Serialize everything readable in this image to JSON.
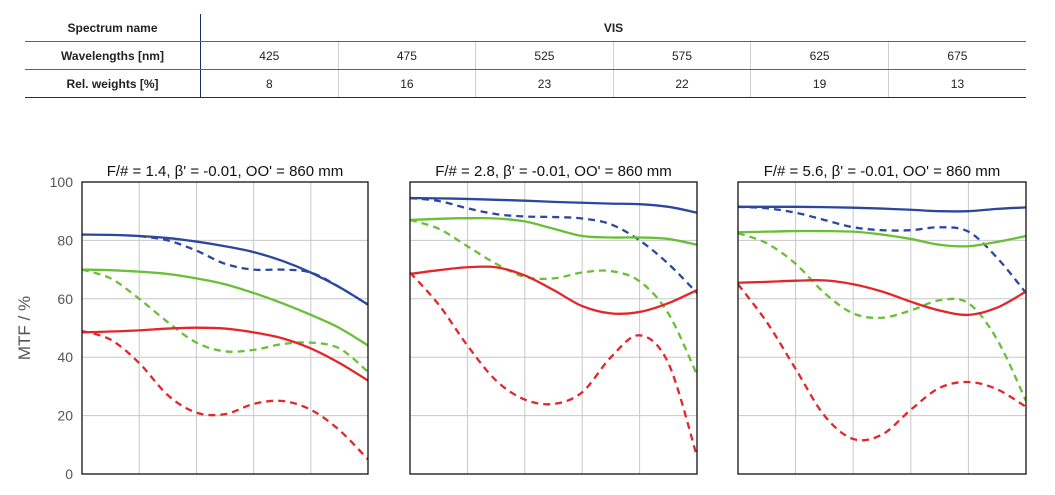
{
  "spectrum_table": {
    "name_label": "Spectrum name",
    "name_value": "VIS",
    "wavelength_label": "Wavelengths [nm]",
    "wavelengths": [
      "425",
      "475",
      "525",
      "575",
      "625",
      "675"
    ],
    "weights_label": "Rel. weights [%]",
    "weights": [
      "8",
      "16",
      "23",
      "22",
      "19",
      "13"
    ]
  },
  "colors": {
    "blue": "#2b47a0",
    "green": "#69bf36",
    "red": "#e3262b",
    "grid": "#c8c8c8",
    "frame": "#111111"
  },
  "chart_data": [
    {
      "type": "line",
      "title": "F/# = 1.4, β' = -0.01, OO' = 860 mm",
      "ylabel": "MTF / %",
      "ylim": [
        0,
        100
      ],
      "yticks": [
        "0",
        "20",
        "40",
        "60",
        "80",
        "100"
      ],
      "xlim": [
        0,
        1
      ],
      "grid": true,
      "series": [
        {
          "color": "blue",
          "style": "solid",
          "x": [
            0,
            0.1,
            0.2,
            0.3,
            0.4,
            0.5,
            0.6,
            0.7,
            0.8,
            0.9,
            1.0
          ],
          "y": [
            82,
            81.9,
            81.5,
            80.8,
            79.6,
            78,
            76,
            73,
            69,
            64,
            58
          ]
        },
        {
          "color": "blue",
          "style": "dashed",
          "x": [
            0.2,
            0.3,
            0.4,
            0.5,
            0.6,
            0.7,
            0.8,
            0.9,
            1.0
          ],
          "y": [
            81.5,
            80,
            76.5,
            72,
            70,
            70,
            69,
            64,
            58
          ]
        },
        {
          "color": "green",
          "style": "solid",
          "x": [
            0,
            0.1,
            0.2,
            0.3,
            0.4,
            0.5,
            0.6,
            0.7,
            0.8,
            0.9,
            1.0
          ],
          "y": [
            70,
            69.8,
            69.3,
            68.5,
            67,
            65,
            62,
            58.5,
            54.5,
            50,
            44
          ]
        },
        {
          "color": "green",
          "style": "dashed",
          "x": [
            0,
            0.1,
            0.2,
            0.3,
            0.4,
            0.5,
            0.6,
            0.7,
            0.8,
            0.9,
            1.0
          ],
          "y": [
            70,
            67,
            60,
            52,
            45,
            42,
            42.5,
            44.5,
            45,
            43,
            35
          ]
        },
        {
          "color": "red",
          "style": "solid",
          "x": [
            0,
            0.1,
            0.2,
            0.3,
            0.4,
            0.5,
            0.6,
            0.7,
            0.8,
            0.9,
            1.0
          ],
          "y": [
            48.5,
            48.8,
            49.2,
            49.8,
            50.1,
            49.8,
            48.5,
            46.5,
            43,
            38,
            32
          ]
        },
        {
          "color": "red",
          "style": "dashed",
          "x": [
            0,
            0.1,
            0.2,
            0.3,
            0.4,
            0.5,
            0.6,
            0.7,
            0.8,
            0.9,
            1.0
          ],
          "y": [
            49,
            46,
            38,
            27,
            21,
            20.5,
            24,
            25,
            22,
            15,
            5
          ]
        }
      ]
    },
    {
      "type": "line",
      "title": "F/# = 2.8, β' = -0.01, OO' = 860 mm",
      "ylim": [
        0,
        100
      ],
      "xlim": [
        0,
        1
      ],
      "grid": true,
      "series": [
        {
          "color": "blue",
          "style": "solid",
          "x": [
            0,
            0.1,
            0.2,
            0.3,
            0.4,
            0.5,
            0.6,
            0.7,
            0.8,
            0.9,
            1.0
          ],
          "y": [
            94.5,
            94.4,
            94.2,
            93.9,
            93.6,
            93.2,
            92.9,
            92.6,
            92.4,
            91.5,
            89.5
          ]
        },
        {
          "color": "blue",
          "style": "dashed",
          "x": [
            0,
            0.1,
            0.2,
            0.3,
            0.4,
            0.5,
            0.6,
            0.7,
            0.8,
            0.9,
            1.0
          ],
          "y": [
            94.5,
            93.5,
            91,
            89,
            88.2,
            88,
            87.5,
            85.5,
            80,
            72,
            62
          ]
        },
        {
          "color": "green",
          "style": "solid",
          "x": [
            0,
            0.1,
            0.2,
            0.3,
            0.4,
            0.5,
            0.6,
            0.7,
            0.8,
            0.9,
            1.0
          ],
          "y": [
            87,
            87.4,
            87.6,
            87.5,
            86.5,
            84,
            81.5,
            81,
            81,
            80.5,
            78.5
          ]
        },
        {
          "color": "green",
          "style": "dashed",
          "x": [
            0,
            0.1,
            0.2,
            0.3,
            0.4,
            0.5,
            0.6,
            0.7,
            0.8,
            0.9,
            1.0
          ],
          "y": [
            87,
            84,
            78,
            72,
            67.5,
            67,
            69,
            69.5,
            66,
            55,
            34
          ]
        },
        {
          "color": "red",
          "style": "solid",
          "x": [
            0,
            0.1,
            0.2,
            0.3,
            0.4,
            0.5,
            0.6,
            0.7,
            0.8,
            0.9,
            1.0
          ],
          "y": [
            68.5,
            69.8,
            70.8,
            70.8,
            68,
            63,
            57.5,
            55,
            55.5,
            58.5,
            63
          ]
        },
        {
          "color": "red",
          "style": "dashed",
          "x": [
            0,
            0.1,
            0.2,
            0.3,
            0.4,
            0.5,
            0.6,
            0.7,
            0.8,
            0.9,
            1.0
          ],
          "y": [
            69,
            58,
            44,
            32,
            25.5,
            24,
            28,
            40,
            47.5,
            38,
            6
          ]
        }
      ]
    },
    {
      "type": "line",
      "title": "F/# = 5.6, β' = -0.01, OO' = 860 mm",
      "ylim": [
        0,
        100
      ],
      "xlim": [
        0,
        1
      ],
      "grid": true,
      "series": [
        {
          "color": "blue",
          "style": "solid",
          "x": [
            0,
            0.1,
            0.2,
            0.3,
            0.4,
            0.5,
            0.6,
            0.7,
            0.8,
            0.9,
            1.0
          ],
          "y": [
            91.5,
            91.5,
            91.5,
            91.4,
            91.2,
            90.9,
            90.5,
            90,
            90,
            90.8,
            91.3
          ]
        },
        {
          "color": "blue",
          "style": "dashed",
          "x": [
            0,
            0.1,
            0.2,
            0.3,
            0.4,
            0.5,
            0.6,
            0.7,
            0.8,
            0.9,
            1.0
          ],
          "y": [
            91.5,
            91,
            89.5,
            87,
            84.5,
            83.5,
            83.5,
            84.5,
            83,
            74,
            62
          ]
        },
        {
          "color": "green",
          "style": "solid",
          "x": [
            0,
            0.1,
            0.2,
            0.3,
            0.4,
            0.5,
            0.6,
            0.7,
            0.8,
            0.9,
            1.0
          ],
          "y": [
            82.8,
            83,
            83.2,
            83.2,
            83,
            82,
            80.5,
            78.5,
            78,
            79.5,
            81.5
          ]
        },
        {
          "color": "green",
          "style": "dashed",
          "x": [
            0,
            0.1,
            0.2,
            0.3,
            0.4,
            0.5,
            0.6,
            0.7,
            0.8,
            0.9,
            1.0
          ],
          "y": [
            82.5,
            79,
            72,
            62,
            55,
            53.5,
            56,
            59.5,
            58.5,
            46,
            25
          ]
        },
        {
          "color": "red",
          "style": "solid",
          "x": [
            0,
            0.1,
            0.2,
            0.3,
            0.4,
            0.5,
            0.6,
            0.7,
            0.8,
            0.9,
            1.0
          ],
          "y": [
            65.5,
            65.8,
            66.2,
            66.3,
            65,
            62.5,
            59,
            56,
            54.5,
            57,
            62.5
          ]
        },
        {
          "color": "red",
          "style": "dashed",
          "x": [
            0,
            0.1,
            0.2,
            0.3,
            0.4,
            0.5,
            0.6,
            0.7,
            0.8,
            0.9,
            1.0
          ],
          "y": [
            65,
            52,
            36,
            20,
            12,
            13.5,
            22,
            29.5,
            31.5,
            29,
            23
          ]
        }
      ]
    }
  ]
}
